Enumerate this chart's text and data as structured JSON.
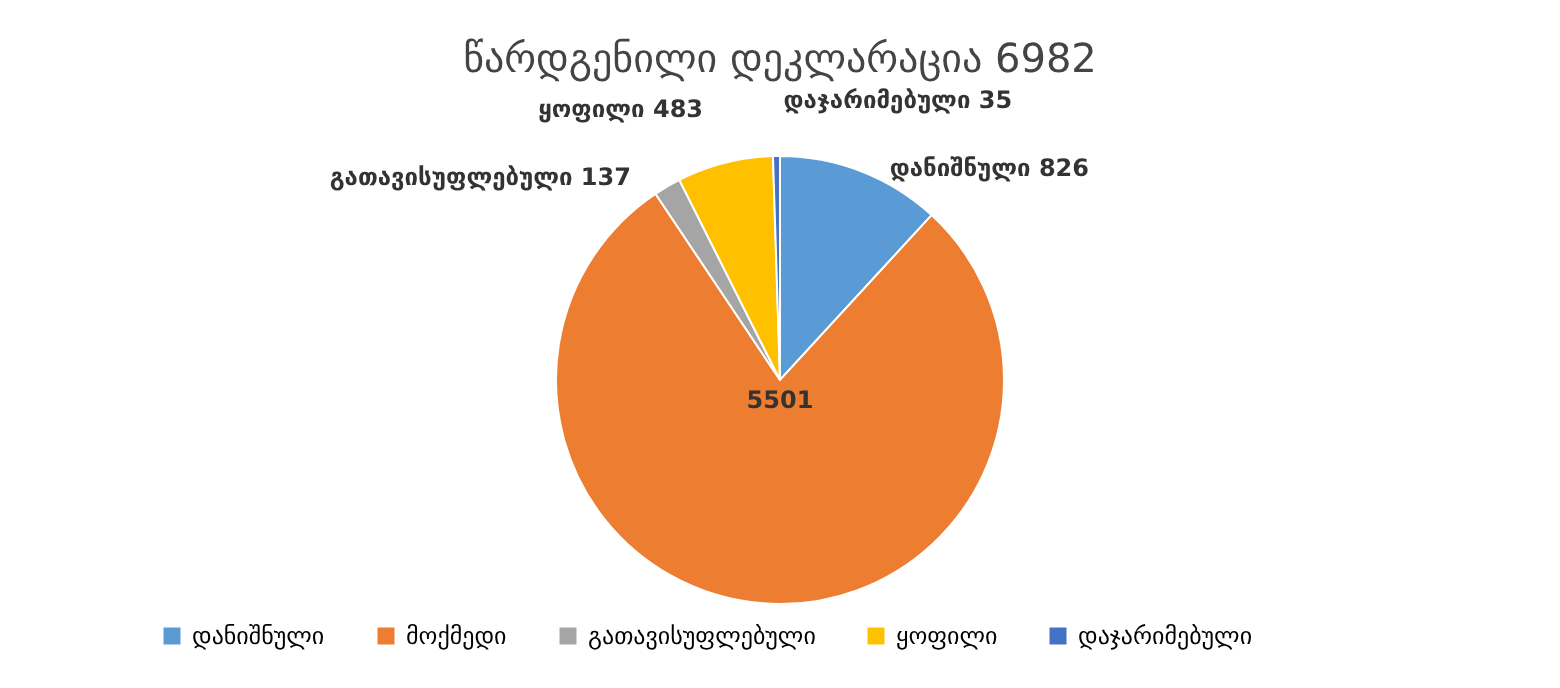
{
  "chart_data": {
    "type": "pie",
    "title": "წარდგენილი დეკლარაცია 6982",
    "categories": [
      "დანიშნული",
      "მოქმედი",
      "გათავისუფლებული",
      "ყოფილი",
      "დაჯარიმებული"
    ],
    "values": [
      826,
      5501,
      137,
      483,
      35
    ],
    "colors": [
      "#5b9bd5",
      "#ed7d31",
      "#a5a5a5",
      "#ffc000",
      "#4472c4"
    ],
    "value_labels": [
      "დანიშნული 826",
      "5501",
      "გათავისუფლებული 137",
      "ყოფილი 483",
      "დაჯარიმებული 35"
    ],
    "legend": "bottom"
  }
}
